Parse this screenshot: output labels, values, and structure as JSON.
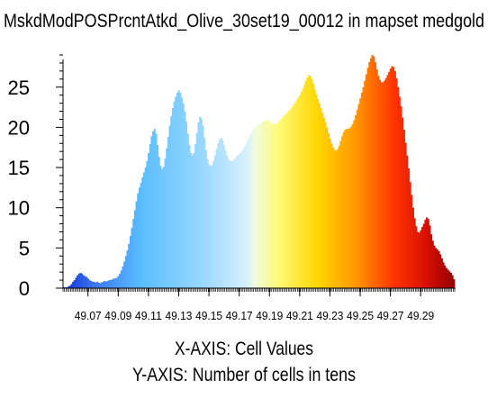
{
  "chart_data": {
    "type": "bar",
    "title": "MskdModPOSPrcntAtkd_Olive_30set19_00012 in mapset medgold",
    "xlabel": "X-AXIS: Cell Values",
    "ylabel": "Y-AXIS: Number of cells in tens",
    "x_tick_labels": [
      "49.07",
      "49.09",
      "49.11",
      "49.13",
      "49.15",
      "49.17",
      "49.19",
      "49.21",
      "49.23",
      "49.25",
      "49.27",
      "49.29"
    ],
    "y_tick_labels": [
      "0",
      "5",
      "10",
      "15",
      "20",
      "25"
    ],
    "x_range": [
      49.0535,
      49.3125
    ],
    "ylim": [
      0,
      29
    ],
    "bin_width": 0.001,
    "grid": false,
    "legend": "none",
    "colormap": "blue-cyan-white-yellow-orange-red",
    "x": [
      49.054,
      49.055,
      49.056,
      49.057,
      49.058,
      49.059,
      49.06,
      49.061,
      49.062,
      49.063,
      49.064,
      49.065,
      49.066,
      49.067,
      49.068,
      49.069,
      49.07,
      49.071,
      49.072,
      49.073,
      49.074,
      49.075,
      49.076,
      49.077,
      49.078,
      49.079,
      49.08,
      49.081,
      49.082,
      49.083,
      49.084,
      49.085,
      49.086,
      49.087,
      49.088,
      49.089,
      49.09,
      49.091,
      49.092,
      49.093,
      49.094,
      49.095,
      49.096,
      49.097,
      49.098,
      49.099,
      49.1,
      49.101,
      49.102,
      49.103,
      49.104,
      49.105,
      49.106,
      49.107,
      49.108,
      49.109,
      49.11,
      49.111,
      49.112,
      49.113,
      49.114,
      49.115,
      49.116,
      49.117,
      49.118,
      49.119,
      49.12,
      49.121,
      49.122,
      49.123,
      49.124,
      49.125,
      49.126,
      49.127,
      49.128,
      49.129,
      49.13,
      49.131,
      49.132,
      49.133,
      49.134,
      49.135,
      49.136,
      49.137,
      49.138,
      49.139,
      49.14,
      49.141,
      49.142,
      49.143,
      49.144,
      49.145,
      49.146,
      49.147,
      49.148,
      49.149,
      49.15,
      49.151,
      49.152,
      49.153,
      49.154,
      49.155,
      49.156,
      49.157,
      49.158,
      49.159,
      49.16,
      49.161,
      49.162,
      49.163,
      49.164,
      49.165,
      49.166,
      49.167,
      49.168,
      49.169,
      49.17,
      49.171,
      49.172,
      49.173,
      49.174,
      49.175,
      49.176,
      49.177,
      49.178,
      49.179,
      49.18,
      49.181,
      49.182,
      49.183,
      49.184,
      49.185,
      49.186,
      49.187,
      49.188,
      49.189,
      49.19,
      49.191,
      49.192,
      49.193,
      49.194,
      49.195,
      49.196,
      49.197,
      49.198,
      49.199,
      49.2,
      49.201,
      49.202,
      49.203,
      49.204,
      49.205,
      49.206,
      49.207,
      49.208,
      49.209,
      49.21,
      49.211,
      49.212,
      49.213,
      49.214,
      49.215,
      49.216,
      49.217,
      49.218,
      49.219,
      49.22,
      49.221,
      49.222,
      49.223,
      49.224,
      49.225,
      49.226,
      49.227,
      49.228,
      49.229,
      49.23,
      49.231,
      49.232,
      49.233,
      49.234,
      49.235,
      49.236,
      49.237,
      49.238,
      49.239,
      49.24,
      49.241,
      49.242,
      49.243,
      49.244,
      49.245,
      49.246,
      49.247,
      49.248,
      49.249,
      49.25,
      49.251,
      49.252,
      49.253,
      49.254,
      49.255,
      49.256,
      49.257,
      49.258,
      49.259,
      49.26,
      49.261,
      49.262,
      49.263,
      49.264,
      49.265,
      49.266,
      49.267,
      49.268,
      49.269,
      49.27,
      49.271,
      49.272,
      49.273,
      49.274,
      49.275,
      49.276,
      49.277,
      49.278,
      49.279,
      49.28,
      49.281,
      49.282,
      49.283,
      49.284,
      49.285,
      49.286,
      49.287,
      49.288,
      49.289,
      49.29,
      49.291,
      49.292,
      49.293,
      49.294,
      49.295,
      49.296,
      49.297,
      49.298,
      49.299,
      49.3,
      49.301,
      49.302,
      49.303,
      49.304,
      49.305,
      49.306,
      49.307,
      49.308,
      49.309,
      49.31,
      49.311,
      49.312
    ],
    "values": [
      0.1,
      0.1,
      0.1,
      0.2,
      0.3,
      0.5,
      0.8,
      1.0,
      1.3,
      1.6,
      1.8,
      1.9,
      1.8,
      1.6,
      1.5,
      1.4,
      1.2,
      1.0,
      0.9,
      0.8,
      0.8,
      0.7,
      0.8,
      0.7,
      0.6,
      0.7,
      0.8,
      0.9,
      0.8,
      0.9,
      1.0,
      1.0,
      1.1,
      1.2,
      1.2,
      1.3,
      1.5,
      1.8,
      2.2,
      2.7,
      3.3,
      4.0,
      4.7,
      5.5,
      6.5,
      7.5,
      8.6,
      9.7,
      10.8,
      11.8,
      12.5,
      13.1,
      13.8,
      14.4,
      15.0,
      15.8,
      16.8,
      17.9,
      18.9,
      19.5,
      19.8,
      19.2,
      17.8,
      16.3,
      15.2,
      14.8,
      15.1,
      16.1,
      17.4,
      18.8,
      20.2,
      21.4,
      22.4,
      23.2,
      23.8,
      24.3,
      24.6,
      24.3,
      23.7,
      23.0,
      22.0,
      20.7,
      19.2,
      17.8,
      16.8,
      16.5,
      16.8,
      17.9,
      19.3,
      20.6,
      21.3,
      21.1,
      20.2,
      18.7,
      17.2,
      16.0,
      15.4,
      15.2,
      15.3,
      15.8,
      16.5,
      17.3,
      18.0,
      18.5,
      18.7,
      18.4,
      17.8,
      17.1,
      16.5,
      16.0,
      15.8,
      15.8,
      15.9,
      16.1,
      16.3,
      16.5,
      16.7,
      16.9,
      17.1,
      17.4,
      17.7,
      18.1,
      18.5,
      18.9,
      19.3,
      19.6,
      19.9,
      20.1,
      20.2,
      20.3,
      20.4,
      20.6,
      20.7,
      20.8,
      20.9,
      20.9,
      20.8,
      20.6,
      20.5,
      20.4,
      20.4,
      20.5,
      20.7,
      20.9,
      21.1,
      21.3,
      21.5,
      21.7,
      21.9,
      22.1,
      22.3,
      22.5,
      22.8,
      23.1,
      23.4,
      23.7,
      24.0,
      24.4,
      24.8,
      25.3,
      25.8,
      26.2,
      26.5,
      26.4,
      26.0,
      25.4,
      24.7,
      24.1,
      23.5,
      23.0,
      22.4,
      21.8,
      21.2,
      20.6,
      20.0,
      19.3,
      18.6,
      18.0,
      17.5,
      17.2,
      17.1,
      17.3,
      17.7,
      18.3,
      18.9,
      19.4,
      19.7,
      19.8,
      19.8,
      19.9,
      20.1,
      20.4,
      20.9,
      21.5,
      22.2,
      22.9,
      23.6,
      24.3,
      25.0,
      25.8,
      26.6,
      27.4,
      28.1,
      28.6,
      29.0,
      28.8,
      28.1,
      27.2,
      26.4,
      25.9,
      25.6,
      25.6,
      25.8,
      26.1,
      26.5,
      26.9,
      27.3,
      27.6,
      27.5,
      27.0,
      26.1,
      25.0,
      23.8,
      22.6,
      21.2,
      19.7,
      18.1,
      16.5,
      14.9,
      13.2,
      11.6,
      10.0,
      8.7,
      7.7,
      7.0,
      6.9,
      7.2,
      7.6,
      8.0,
      8.5,
      8.8,
      8.6,
      7.8,
      6.7,
      5.9,
      5.3,
      5.0,
      4.8,
      4.6,
      4.2,
      3.7,
      3.2,
      2.8,
      2.5,
      2.3,
      2.1,
      1.9,
      1.6,
      1.1
    ]
  }
}
